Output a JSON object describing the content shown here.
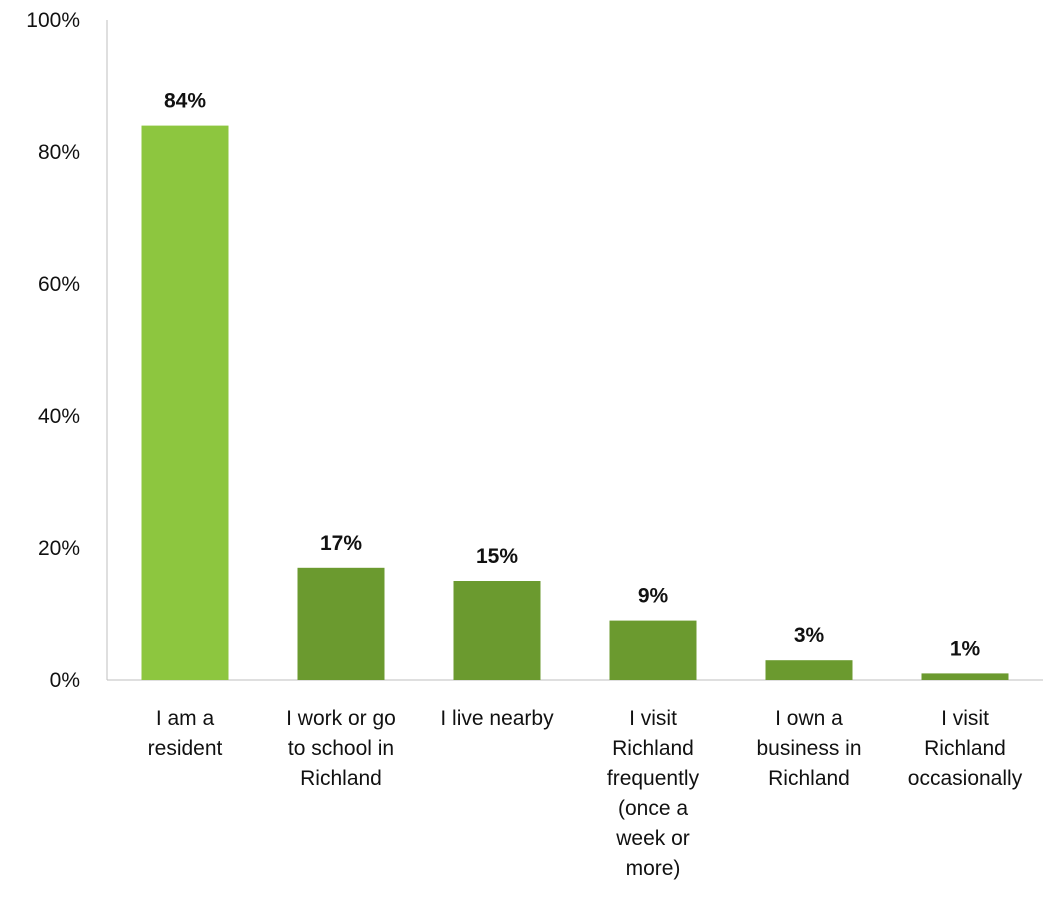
{
  "chart_data": {
    "type": "bar",
    "title": "",
    "xlabel": "",
    "ylabel": "",
    "ylim": [
      0,
      100
    ],
    "y_ticks": [
      0,
      20,
      40,
      60,
      80,
      100
    ],
    "y_tick_labels": [
      "0%",
      "20%",
      "40%",
      "60%",
      "80%",
      "100%"
    ],
    "grid": false,
    "legend": "none",
    "categories": [
      "I am a resident",
      "I work or go to school in Richland",
      "I live nearby",
      "I visit Richland frequently (once a week or more)",
      "I own a business in Richland",
      "I visit Richland occasionally"
    ],
    "category_label_lines": [
      [
        "I am a",
        "resident"
      ],
      [
        "I work or go",
        "to school in",
        "Richland"
      ],
      [
        "I live nearby"
      ],
      [
        "I visit",
        "Richland",
        "frequently",
        "(once a",
        "week or",
        "more)"
      ],
      [
        "I own a",
        "business in",
        "Richland"
      ],
      [
        "I visit",
        "Richland",
        "occasionally"
      ]
    ],
    "values": [
      84,
      17,
      15,
      9,
      3,
      1
    ],
    "value_labels": [
      "84%",
      "17%",
      "15%",
      "9%",
      "3%",
      "1%"
    ],
    "colors": {
      "highlight_bar": "#8dc63f",
      "bar": "#6b9a2f",
      "axis": "#bfbfbf",
      "text": "#111111"
    }
  }
}
